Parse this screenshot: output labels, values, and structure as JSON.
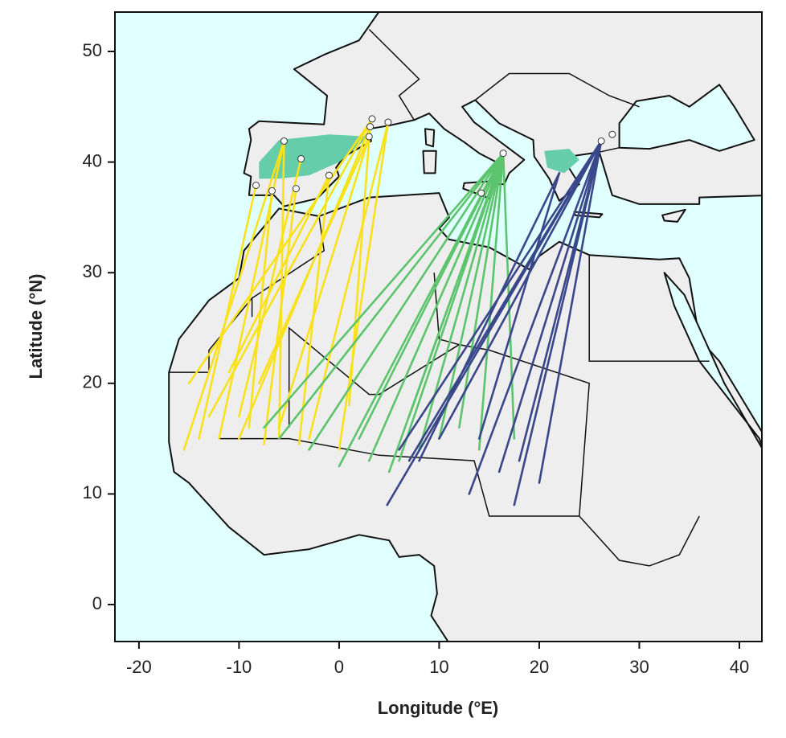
{
  "chart_data": {
    "type": "map",
    "xlabel": "Longitude (°E)",
    "ylabel": "Latitude (°N)",
    "xlim": [
      -22.4,
      42.25
    ],
    "ylim": [
      -3.34,
      53.56
    ],
    "xticks": [
      -20,
      -10,
      0,
      10,
      20,
      30,
      40
    ],
    "yticks": [
      0,
      10,
      20,
      30,
      40,
      50
    ],
    "series": [
      {
        "color": "#f9e11b",
        "tracks": [
          {
            "lon": [
              -5.5,
              -15.5
            ],
            "lat": [
              41.9,
              14
            ]
          },
          {
            "lon": [
              -5.5,
              -12
            ],
            "lat": [
              41.9,
              15
            ]
          },
          {
            "lon": [
              -8.3,
              -14
            ],
            "lat": [
              37.9,
              15
            ]
          },
          {
            "lon": [
              -6.7,
              -9
            ],
            "lat": [
              37.4,
              16
            ]
          },
          {
            "lon": [
              -4.3,
              -7.5
            ],
            "lat": [
              37.6,
              14.5
            ]
          },
          {
            "lon": [
              -3.8,
              -10
            ],
            "lat": [
              40.3,
              17
            ]
          },
          {
            "lon": [
              -1.0,
              -4
            ],
            "lat": [
              38.8,
              14.5
            ]
          },
          {
            "lon": [
              3.3,
              -13
            ],
            "lat": [
              43.9,
              17
            ]
          },
          {
            "lon": [
              3.1,
              -10
            ],
            "lat": [
              43.2,
              15
            ]
          },
          {
            "lon": [
              3.0,
              -6
            ],
            "lat": [
              42.3,
              16
            ]
          },
          {
            "lon": [
              4.9,
              -3
            ],
            "lat": [
              43.6,
              15
            ]
          },
          {
            "lon": [
              4.9,
              0
            ],
            "lat": [
              43.6,
              14
            ]
          },
          {
            "lon": [
              3.3,
              -15
            ],
            "lat": [
              43.9,
              20
            ]
          },
          {
            "lon": [
              3.0,
              -8
            ],
            "lat": [
              42.3,
              20
            ]
          },
          {
            "lon": [
              -5.5,
              -6
            ],
            "lat": [
              41.9,
              15
            ]
          },
          {
            "lon": [
              3.1,
              1
            ],
            "lat": [
              43.2,
              18
            ]
          },
          {
            "lon": [
              -1.0,
              -11
            ],
            "lat": [
              38.8,
              21
            ]
          }
        ]
      },
      {
        "color": "#5cc46c",
        "tracks": [
          {
            "lon": [
              16.4,
              -7.5
            ],
            "lat": [
              40.8,
              16
            ]
          },
          {
            "lon": [
              16.4,
              -3
            ],
            "lat": [
              40.8,
              14
            ]
          },
          {
            "lon": [
              16.4,
              0
            ],
            "lat": [
              40.8,
              12.5
            ]
          },
          {
            "lon": [
              16.4,
              3
            ],
            "lat": [
              40.8,
              13
            ]
          },
          {
            "lon": [
              16.4,
              6
            ],
            "lat": [
              40.8,
              13
            ]
          },
          {
            "lon": [
              16.4,
              8
            ],
            "lat": [
              40.8,
              14
            ]
          },
          {
            "lon": [
              16.4,
              10
            ],
            "lat": [
              40.8,
              15
            ]
          },
          {
            "lon": [
              16.4,
              5
            ],
            "lat": [
              40.8,
              12
            ]
          },
          {
            "lon": [
              16.4,
              12
            ],
            "lat": [
              40.8,
              16
            ]
          },
          {
            "lon": [
              16.4,
              14
            ],
            "lat": [
              40.8,
              14
            ]
          },
          {
            "lon": [
              16.4,
              -6
            ],
            "lat": [
              40.8,
              15
            ]
          },
          {
            "lon": [
              16.4,
              2
            ],
            "lat": [
              40.8,
              15
            ]
          },
          {
            "lon": [
              16.4,
              7
            ],
            "lat": [
              40.8,
              17
            ]
          },
          {
            "lon": [
              16.4,
              17.5
            ],
            "lat": [
              40.8,
              15
            ]
          }
        ]
      },
      {
        "color": "#3a478a",
        "tracks": [
          {
            "lon": [
              26.2,
              4.8
            ],
            "lat": [
              41.9,
              9
            ]
          },
          {
            "lon": [
              26.2,
              7
            ],
            "lat": [
              41.9,
              13
            ]
          },
          {
            "lon": [
              26.2,
              13
            ],
            "lat": [
              41.9,
              10
            ]
          },
          {
            "lon": [
              26.2,
              16
            ],
            "lat": [
              41.9,
              12
            ]
          },
          {
            "lon": [
              26.2,
              17.5
            ],
            "lat": [
              41.9,
              9
            ]
          },
          {
            "lon": [
              26.2,
              20
            ],
            "lat": [
              41.9,
              11
            ]
          },
          {
            "lon": [
              26.2,
              18
            ],
            "lat": [
              41.9,
              13
            ]
          },
          {
            "lon": [
              26.2,
              10
            ],
            "lat": [
              41.9,
              15
            ]
          },
          {
            "lon": [
              26.2,
              6
            ],
            "lat": [
              41.9,
              14
            ]
          },
          {
            "lon": [
              22,
              14
            ],
            "lat": [
              39,
              15
            ]
          },
          {
            "lon": [
              22,
              8
            ],
            "lat": [
              39,
              13
            ]
          }
        ]
      }
    ],
    "sites": {
      "lon": [
        -5.5,
        -3.8,
        -8.3,
        -6.7,
        -4.3,
        -1.0,
        3.3,
        3.1,
        3.0,
        4.9,
        16.4,
        14.2,
        26.2,
        27.3
      ],
      "lat": [
        41.9,
        40.3,
        37.9,
        37.4,
        37.6,
        38.8,
        43.9,
        43.2,
        42.3,
        43.6,
        40.8,
        37.2,
        41.9,
        42.5
      ]
    }
  }
}
